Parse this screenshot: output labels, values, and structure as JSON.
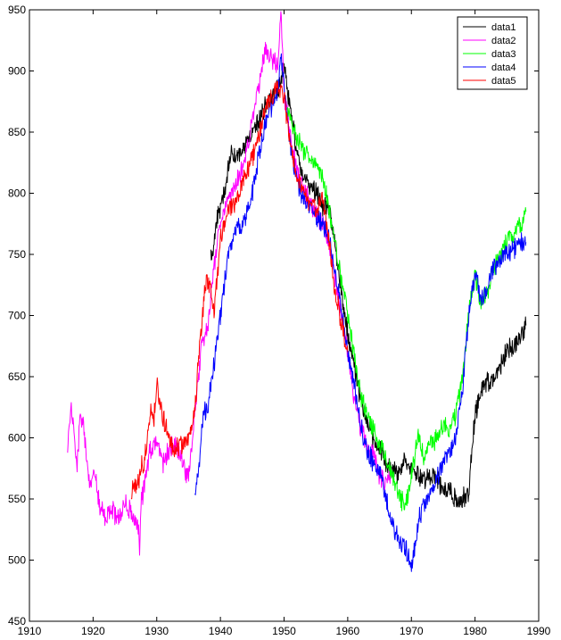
{
  "chart_data": {
    "type": "line",
    "title": "",
    "xlabel": "",
    "ylabel": "",
    "xlim": [
      1910,
      1990
    ],
    "ylim": [
      450,
      950
    ],
    "xticks": [
      1910,
      1920,
      1930,
      1940,
      1950,
      1960,
      1970,
      1980,
      1990
    ],
    "yticks": [
      450,
      500,
      550,
      600,
      650,
      700,
      750,
      800,
      850,
      900,
      950
    ],
    "grid": false,
    "legend_position": "top-right",
    "series": [
      {
        "name": "data1",
        "color": "#000000",
        "x": [
          1938.5,
          1939,
          1939.5,
          1940,
          1940.5,
          1941,
          1941.5,
          1942,
          1943,
          1944,
          1945,
          1946,
          1947,
          1948,
          1949,
          1950,
          1951,
          1952,
          1953,
          1954,
          1955,
          1956,
          1957,
          1958,
          1959,
          1960,
          1961,
          1962,
          1963,
          1964,
          1965,
          1966,
          1967,
          1968,
          1969,
          1970,
          1971,
          1972,
          1973,
          1974,
          1975,
          1976,
          1977,
          1978,
          1979,
          1980,
          1981,
          1982,
          1983,
          1984,
          1985,
          1986,
          1987,
          1988
        ],
        "y": [
          745,
          760,
          780,
          785,
          800,
          810,
          830,
          832,
          832,
          840,
          850,
          858,
          870,
          880,
          885,
          905,
          868,
          835,
          815,
          805,
          800,
          790,
          790,
          760,
          720,
          685,
          660,
          630,
          615,
          600,
          590,
          580,
          575,
          570,
          580,
          575,
          570,
          565,
          570,
          565,
          560,
          555,
          550,
          550,
          555,
          620,
          640,
          645,
          650,
          660,
          670,
          675,
          680,
          692
        ]
      },
      {
        "name": "data2",
        "color": "#ff00ff",
        "x": [
          1916,
          1916.5,
          1917,
          1917.5,
          1918,
          1918.5,
          1919,
          1919.5,
          1920,
          1920.5,
          1921,
          1922,
          1923,
          1924,
          1925,
          1926,
          1927,
          1927.3,
          1927.6,
          1928,
          1929,
          1930,
          1931,
          1932,
          1933,
          1934,
          1935,
          1936,
          1937,
          1938,
          1939,
          1940,
          1941,
          1942,
          1943,
          1944,
          1945,
          1946,
          1947,
          1948,
          1949,
          1949.5,
          1950,
          1951,
          1952,
          1953,
          1954,
          1955,
          1956,
          1957,
          1958,
          1959,
          1960,
          1961,
          1962,
          1963,
          1964,
          1965,
          1966,
          1967
        ],
        "y": [
          585,
          630,
          605,
          575,
          620,
          610,
          580,
          560,
          570,
          565,
          545,
          535,
          540,
          535,
          545,
          540,
          530,
          510,
          550,
          560,
          590,
          600,
          580,
          590,
          595,
          580,
          565,
          620,
          675,
          690,
          740,
          775,
          790,
          800,
          815,
          830,
          860,
          885,
          920,
          910,
          905,
          945,
          880,
          850,
          820,
          805,
          795,
          785,
          775,
          760,
          730,
          700,
          670,
          630,
          610,
          595,
          585,
          570,
          565,
          570
        ]
      },
      {
        "name": "data3",
        "color": "#00ff00",
        "x": [
          1950.5,
          1951,
          1952,
          1953,
          1954,
          1955,
          1956,
          1957,
          1958,
          1959,
          1960,
          1961,
          1962,
          1963,
          1964,
          1965,
          1966,
          1967,
          1968,
          1969,
          1970,
          1971,
          1972,
          1973,
          1974,
          1975,
          1976,
          1977,
          1978,
          1979,
          1980,
          1981,
          1982,
          1983,
          1984,
          1985,
          1986,
          1987,
          1988
        ],
        "y": [
          870,
          860,
          845,
          835,
          828,
          820,
          812,
          790,
          760,
          730,
          700,
          670,
          635,
          620,
          605,
          595,
          585,
          570,
          555,
          545,
          570,
          600,
          585,
          595,
          600,
          610,
          605,
          620,
          650,
          700,
          735,
          710,
          720,
          740,
          750,
          760,
          765,
          775,
          785
        ]
      },
      {
        "name": "data4",
        "color": "#0000ff",
        "x": [
          1936,
          1936.5,
          1937,
          1937.5,
          1938,
          1938.5,
          1939,
          1940,
          1941,
          1942,
          1943,
          1944,
          1945,
          1946,
          1947,
          1948,
          1949,
          1949.5,
          1950,
          1951,
          1952,
          1953,
          1954,
          1955,
          1956,
          1957,
          1958,
          1959,
          1960,
          1961,
          1962,
          1963,
          1964,
          1965,
          1966,
          1967,
          1968,
          1969,
          1970,
          1971,
          1972,
          1973,
          1974,
          1975,
          1976,
          1977,
          1978,
          1979,
          1980,
          1981,
          1982,
          1983,
          1984,
          1985,
          1986,
          1987,
          1988
        ],
        "y": [
          548,
          570,
          600,
          625,
          620,
          645,
          660,
          700,
          740,
          765,
          775,
          780,
          800,
          830,
          855,
          870,
          880,
          915,
          885,
          840,
          810,
          795,
          790,
          780,
          775,
          765,
          735,
          705,
          670,
          645,
          610,
          590,
          580,
          570,
          550,
          530,
          515,
          510,
          495,
          530,
          545,
          555,
          565,
          580,
          590,
          600,
          640,
          700,
          735,
          710,
          720,
          740,
          745,
          750,
          755,
          760,
          760
        ]
      },
      {
        "name": "data5",
        "color": "#ff0000",
        "x": [
          1926,
          1926.5,
          1927,
          1927.5,
          1928,
          1928.5,
          1929,
          1929.5,
          1930,
          1930.5,
          1931,
          1932,
          1933,
          1934,
          1935,
          1936,
          1936.5,
          1937,
          1937.5,
          1938,
          1938.5,
          1939,
          1940,
          1941,
          1942,
          1943,
          1944,
          1945,
          1946,
          1947,
          1948,
          1949,
          1950,
          1951,
          1952,
          1953,
          1954,
          1955,
          1956,
          1957,
          1958,
          1959,
          1960
        ],
        "y": [
          555,
          562,
          560,
          575,
          580,
          600,
          620,
          610,
          645,
          630,
          615,
          600,
          590,
          595,
          600,
          620,
          660,
          690,
          720,
          730,
          720,
          700,
          760,
          780,
          790,
          800,
          815,
          830,
          845,
          870,
          880,
          885,
          880,
          840,
          815,
          800,
          795,
          785,
          795,
          765,
          720,
          695,
          670
        ]
      }
    ]
  }
}
